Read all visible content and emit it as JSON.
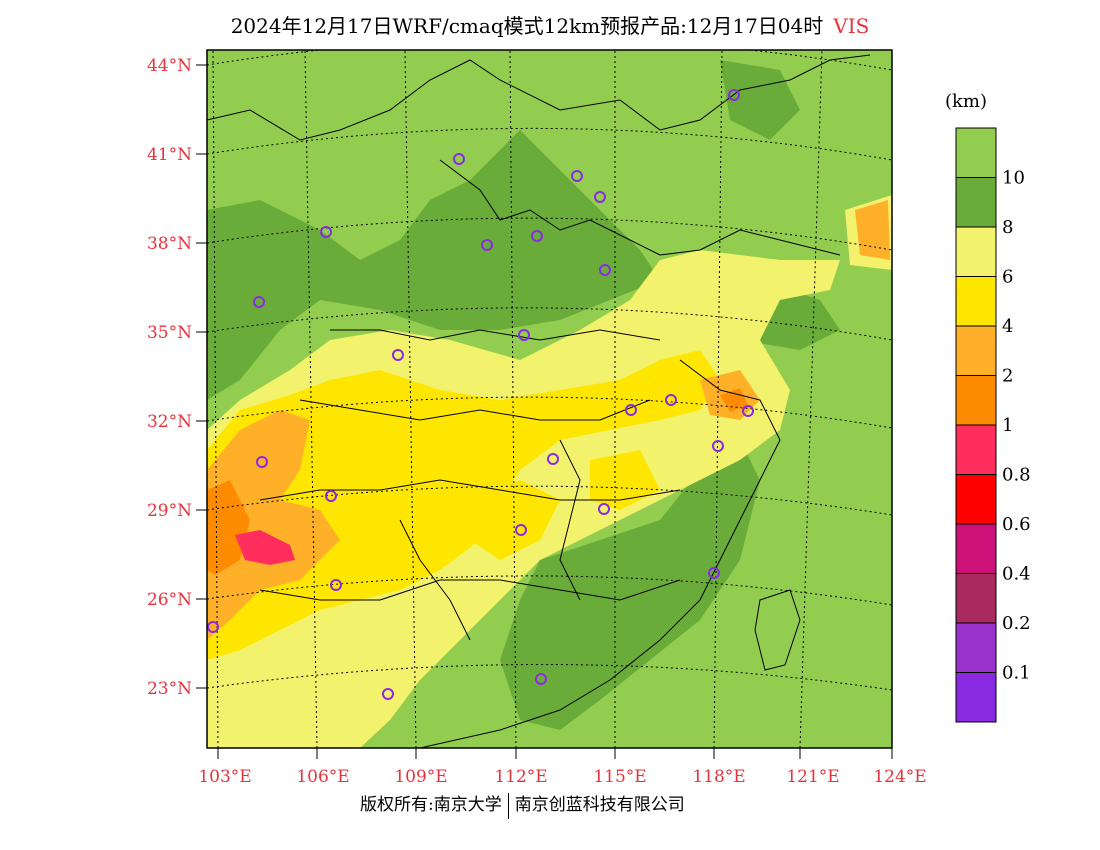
{
  "header": {
    "title": "2024年12月17日WRF/cmaq模式12km预报产品:12月17日04时",
    "variable": "VIS"
  },
  "axes": {
    "lat_labels": [
      "44°N",
      "41°N",
      "38°N",
      "35°N",
      "32°N",
      "29°N",
      "26°N",
      "23°N"
    ],
    "lon_labels": [
      "103°E",
      "106°E",
      "109°E",
      "112°E",
      "115°E",
      "118°E",
      "121°E",
      "124°E"
    ]
  },
  "legend": {
    "unit": "(km)",
    "levels": [
      {
        "label": "10",
        "color": "#92cd50"
      },
      {
        "label": "8",
        "color": "#6aac3a"
      },
      {
        "label": "6",
        "color": "#f2f26c"
      },
      {
        "label": "4",
        "color": "#ffe600"
      },
      {
        "label": "2",
        "color": "#ffb029"
      },
      {
        "label": "1",
        "color": "#ff8c00"
      },
      {
        "label": "0.8",
        "color": "#ff2e5c"
      },
      {
        "label": "0.6",
        "color": "#ff0000"
      },
      {
        "label": "0.4",
        "color": "#cc1179"
      },
      {
        "label": "0.2",
        "color": "#a82a5e"
      },
      {
        "label": "0.1",
        "color": "#9932cc"
      },
      {
        "label": "",
        "color": "#8a2be2"
      }
    ]
  },
  "footer": {
    "left": "版权所有:南京大学",
    "right": "南京创蓝科技有限公司"
  },
  "colors": {
    "axis_label": "#e8323c",
    "station_marker": "#8a2be2"
  }
}
